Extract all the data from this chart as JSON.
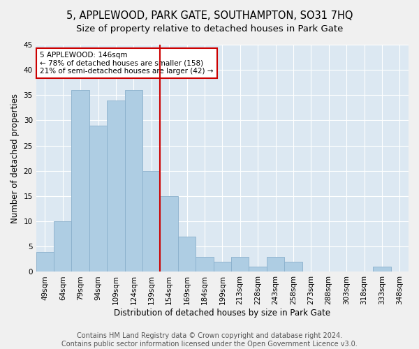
{
  "title1": "5, APPLEWOOD, PARK GATE, SOUTHAMPTON, SO31 7HQ",
  "title2": "Size of property relative to detached houses in Park Gate",
  "xlabel": "Distribution of detached houses by size in Park Gate",
  "ylabel": "Number of detached properties",
  "categories": [
    "49sqm",
    "64sqm",
    "79sqm",
    "94sqm",
    "109sqm",
    "124sqm",
    "139sqm",
    "154sqm",
    "169sqm",
    "184sqm",
    "199sqm",
    "213sqm",
    "228sqm",
    "243sqm",
    "258sqm",
    "273sqm",
    "288sqm",
    "303sqm",
    "318sqm",
    "333sqm",
    "348sqm"
  ],
  "values": [
    4,
    10,
    36,
    29,
    34,
    36,
    20,
    15,
    7,
    3,
    2,
    3,
    1,
    3,
    2,
    0,
    0,
    0,
    0,
    1,
    0
  ],
  "bar_color": "#aecde3",
  "bar_edge_color": "#8ab0cc",
  "bg_color": "#dce8f2",
  "grid_color": "#ffffff",
  "vline_x": 6.5,
  "vline_color": "#cc0000",
  "annotation_text": "5 APPLEWOOD: 146sqm\n← 78% of detached houses are smaller (158)\n21% of semi-detached houses are larger (42) →",
  "annotation_box_color": "#cc0000",
  "annotation_text_color": "#000000",
  "ylim": [
    0,
    45
  ],
  "yticks": [
    0,
    5,
    10,
    15,
    20,
    25,
    30,
    35,
    40,
    45
  ],
  "footer_text": "Contains HM Land Registry data © Crown copyright and database right 2024.\nContains public sector information licensed under the Open Government Licence v3.0.",
  "title_fontsize": 10.5,
  "subtitle_fontsize": 9.5,
  "axis_label_fontsize": 8.5,
  "tick_fontsize": 7.5,
  "footer_fontsize": 7.0,
  "fig_bg_color": "#f0f0f0"
}
